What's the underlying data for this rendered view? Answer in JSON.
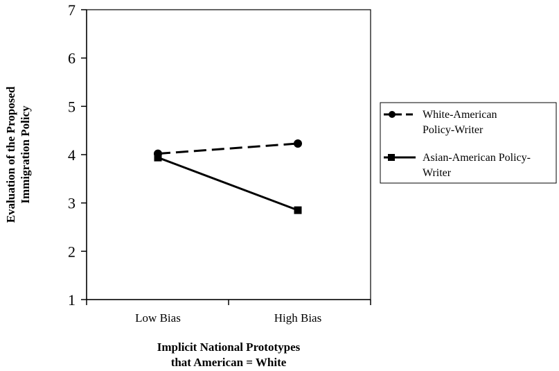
{
  "chart_data": {
    "type": "line",
    "categories": [
      "Low Bias",
      "High Bias"
    ],
    "series": [
      {
        "name": "White-American Policy-Writer",
        "values": [
          4.02,
          4.23
        ],
        "style": "dashed",
        "marker": "circle",
        "color": "#000000"
      },
      {
        "name": "Asian-American Policy-Writer",
        "values": [
          3.94,
          2.85
        ],
        "style": "solid",
        "marker": "square",
        "color": "#000000"
      }
    ],
    "ylim": [
      1,
      7
    ],
    "yticks": [
      "1",
      "2",
      "3",
      "4",
      "5",
      "6",
      "7"
    ],
    "xlabel_lines": [
      "Implicit National Prototypes",
      "that American = White"
    ],
    "ylabel_lines": [
      "Evaluation of the Proposed",
      "Immigration Policy"
    ],
    "legend": {
      "placement": "right",
      "entries": [
        {
          "lines": [
            "White-American",
            "Policy-Writer"
          ]
        },
        {
          "lines": [
            "Asian-American Policy-",
            "Writer"
          ]
        }
      ]
    },
    "grid": false
  }
}
